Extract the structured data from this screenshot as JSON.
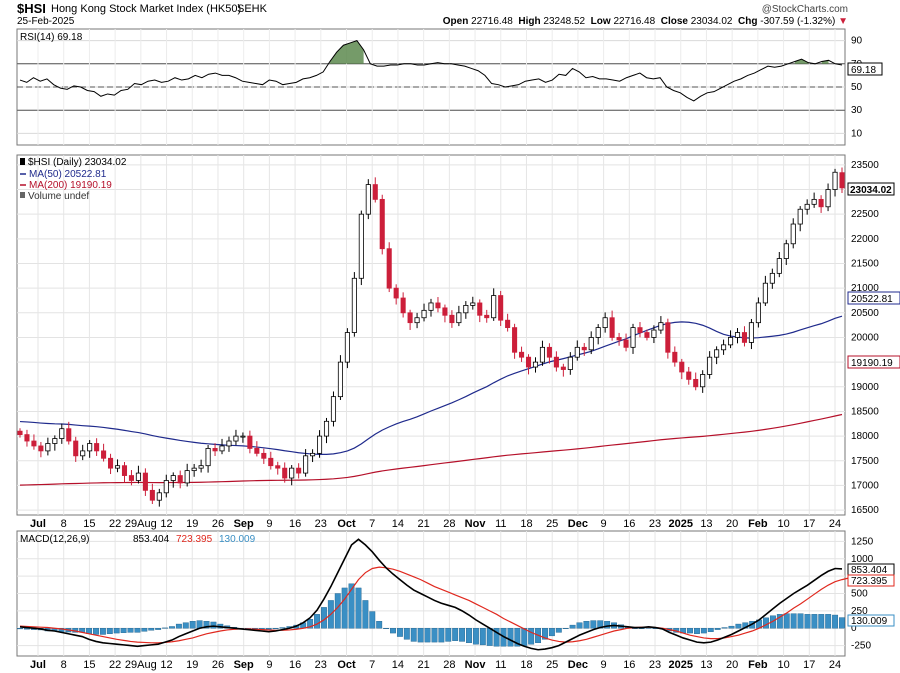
{
  "header": {
    "symbol": "$HSI",
    "name": "Hong Kong Stock Market Index (HK50)",
    "exchange": "SEHK",
    "date": "25-Feb-2025",
    "open_label": "Open",
    "open": "22716.48",
    "high_label": "High",
    "high": "23248.52",
    "low_label": "Low",
    "low": "22716.48",
    "close_label": "Close",
    "close": "23034.02",
    "chg_label": "Chg",
    "chg": "-307.59 (-1.32%)",
    "watermark": "@StockCharts.com"
  },
  "colors": {
    "up": "#000000",
    "down": "#cc1f3a",
    "ma50": "#1f2a8c",
    "ma200": "#b5102a",
    "rsi_fill": "#5d8a4f",
    "hist": "#3a8fc4",
    "signal": "#e0281e",
    "grid": "#d9d9d9"
  },
  "chart_data": [
    {
      "type": "line",
      "title": "RSI(14) 69.18",
      "ylim": [
        0,
        100
      ],
      "y_ticks": [
        "10",
        "30",
        "50",
        "70",
        "90"
      ],
      "last_value": "69.18",
      "series": [
        {
          "name": "RSI(14)",
          "values": [
            56,
            54,
            58,
            55,
            57,
            52,
            49,
            48,
            51,
            50,
            47,
            46,
            42,
            44,
            43,
            47,
            48,
            53,
            52,
            55,
            56,
            54,
            55,
            58,
            56,
            57,
            60,
            58,
            61,
            62,
            60,
            60,
            58,
            55,
            54,
            53,
            52,
            56,
            55,
            52,
            53,
            54,
            57,
            58,
            60,
            63,
            72,
            80,
            86,
            88,
            90,
            82,
            70,
            68,
            68,
            69,
            69,
            70,
            70,
            69,
            69,
            70,
            71,
            70,
            70,
            69,
            68,
            66,
            64,
            60,
            53,
            52,
            50,
            51,
            52,
            55,
            56,
            57,
            54,
            56,
            61,
            60,
            66,
            63,
            58,
            59,
            57,
            57,
            56,
            55,
            58,
            60,
            62,
            58,
            57,
            58,
            50,
            47,
            45,
            41,
            38,
            42,
            45,
            46,
            49,
            52,
            55,
            57,
            60,
            62,
            65,
            68,
            67,
            68,
            70,
            72,
            74,
            71,
            70,
            72,
            73,
            70,
            69
          ]
        }
      ],
      "overbought": 70,
      "oversold": 30
    },
    {
      "type": "candlestick",
      "title": "$HSI (Daily) 23034.02",
      "legend": [
        "$HSI (Daily) 23034.02",
        "MA(50) 20522.81",
        "MA(200) 19190.19",
        "Volume undef"
      ],
      "ylim": [
        16400,
        23700
      ],
      "y_ticks": [
        "16500",
        "17000",
        "17500",
        "18000",
        "18500",
        "19000",
        "19500",
        "20000",
        "20500",
        "21000",
        "21500",
        "22000",
        "22500",
        "23000",
        "23500"
      ],
      "x_ticks": [
        "Jul",
        "8",
        "15",
        "22",
        "29Aug",
        "12",
        "19",
        "26",
        "Sep",
        "9",
        "16",
        "23",
        "Oct",
        "7",
        "14",
        "21",
        "28",
        "Nov",
        "11",
        "18",
        "25",
        "Dec",
        "9",
        "16",
        "23",
        "2025",
        "13",
        "20",
        "Feb",
        "10",
        "17",
        "24"
      ],
      "last_close": "23034.02",
      "ma50_last": "20522.81",
      "ma200_last": "19190.19",
      "closes": [
        18030,
        17900,
        17800,
        17700,
        17850,
        17950,
        18150,
        17900,
        17600,
        17700,
        17850,
        17700,
        17550,
        17350,
        17400,
        17200,
        17100,
        17250,
        16900,
        16700,
        16850,
        17100,
        17200,
        17050,
        17300,
        17350,
        17400,
        17750,
        17700,
        17800,
        17900,
        18000,
        18000,
        17750,
        17650,
        17550,
        17400,
        17350,
        17150,
        17350,
        17250,
        17600,
        17650,
        18000,
        18300,
        18800,
        19500,
        20100,
        21200,
        22500,
        23100,
        22800,
        21800,
        21000,
        20800,
        20500,
        20300,
        20400,
        20550,
        20700,
        20600,
        20450,
        20300,
        20500,
        20650,
        20700,
        20450,
        20400,
        20850,
        20350,
        20200,
        19700,
        19600,
        19400,
        19500,
        19800,
        19600,
        19400,
        19350,
        19600,
        19800,
        19750,
        20000,
        20200,
        20400,
        20000,
        19950,
        19800,
        20200,
        20100,
        20000,
        20150,
        20300,
        19700,
        19500,
        19300,
        19150,
        19000,
        19250,
        19600,
        19750,
        19850,
        20000,
        20100,
        19900,
        20300,
        20700,
        21100,
        21300,
        21600,
        21900,
        22300,
        22600,
        22700,
        22800,
        22650,
        23000,
        23350,
        23034.02
      ],
      "opens": [
        18100,
        18030,
        17900,
        17800,
        17700,
        17850,
        17950,
        18150,
        17900,
        17600,
        17700,
        17850,
        17700,
        17550,
        17350,
        17400,
        17200,
        17100,
        17250,
        16900,
        16700,
        16850,
        17100,
        17200,
        17050,
        17300,
        17350,
        17400,
        17750,
        17700,
        17800,
        17900,
        18000,
        18000,
        17750,
        17650,
        17550,
        17400,
        17350,
        17150,
        17350,
        17250,
        17600,
        17650,
        18000,
        18300,
        18800,
        19500,
        20100,
        21200,
        22500,
        23100,
        22800,
        21800,
        21000,
        20800,
        20500,
        20300,
        20400,
        20550,
        20700,
        20600,
        20450,
        20300,
        20500,
        20650,
        20700,
        20450,
        20400,
        20850,
        20350,
        20200,
        19700,
        19600,
        19400,
        19500,
        19800,
        19600,
        19400,
        19350,
        19600,
        19800,
        19750,
        20000,
        20200,
        20400,
        20000,
        19950,
        19800,
        20200,
        20100,
        20000,
        20150,
        20300,
        19700,
        19500,
        19300,
        19150,
        19000,
        19250,
        19600,
        19750,
        19850,
        20000,
        20100,
        19900,
        20300,
        20700,
        21100,
        21300,
        21600,
        21900,
        22300,
        22600,
        22700,
        22800,
        22650,
        23000,
        23341.61
      ]
    },
    {
      "type": "line",
      "title": "MACD(12,26,9) 853.404, 723.395, 130.009",
      "legend": [
        "MACD(12,26,9)",
        "853.404",
        "723.395",
        "130.009"
      ],
      "ylim": [
        -400,
        1400
      ],
      "y_ticks": [
        "-250",
        "0",
        "250",
        "500",
        "750",
        "1000",
        "1250"
      ],
      "value_labels": [
        "853.404",
        "723.395",
        "130.009"
      ],
      "series": [
        {
          "name": "MACD(12,26,9)",
          "values": [
            20,
            10,
            0,
            -10,
            -30,
            -40,
            -60,
            -80,
            -100,
            -120,
            -160,
            -190,
            -210,
            -220,
            -230,
            -240,
            -250,
            -260,
            -250,
            -240,
            -230,
            -200,
            -170,
            -120,
            -80,
            -40,
            0,
            20,
            30,
            20,
            10,
            0,
            -10,
            -20,
            -30,
            -40,
            -50,
            -40,
            -20,
            0,
            30,
            80,
            150,
            260,
            420,
            600,
            800,
            1000,
            1200,
            1280,
            1200,
            1100,
            980,
            870,
            780,
            700,
            620,
            550,
            500,
            450,
            400,
            360,
            330,
            300,
            250,
            190,
            120,
            60,
            0,
            -60,
            -120,
            -170,
            -220,
            -260,
            -290,
            -310,
            -300,
            -280,
            -250,
            -200,
            -150,
            -100,
            -60,
            -20,
            10,
            30,
            40,
            30,
            20,
            10,
            10,
            20,
            10,
            -10,
            -60,
            -100,
            -140,
            -170,
            -200,
            -210,
            -200,
            -170,
            -130,
            -90,
            -40,
            10,
            60,
            120,
            200,
            280,
            360,
            430,
            500,
            560,
            620,
            690,
            760,
            820,
            860,
            853.404
          ]
        },
        {
          "name": "Signal",
          "values": [
            30,
            25,
            20,
            15,
            10,
            0,
            -10,
            -25,
            -40,
            -60,
            -80,
            -100,
            -120,
            -140,
            -160,
            -175,
            -190,
            -200,
            -205,
            -210,
            -210,
            -205,
            -195,
            -180,
            -160,
            -140,
            -110,
            -80,
            -60,
            -40,
            -25,
            -15,
            -10,
            -10,
            -15,
            -20,
            -25,
            -30,
            -30,
            -25,
            -15,
            0,
            20,
            60,
            120,
            200,
            300,
            420,
            560,
            700,
            800,
            860,
            880,
            870,
            850,
            820,
            780,
            740,
            700,
            650,
            600,
            560,
            520,
            480,
            440,
            400,
            350,
            300,
            250,
            200,
            140,
            90,
            40,
            -10,
            -60,
            -100,
            -140,
            -170,
            -190,
            -200,
            -195,
            -180,
            -160,
            -130,
            -100,
            -70,
            -40,
            -20,
            0,
            10,
            15,
            15,
            10,
            0,
            -20,
            -40,
            -70,
            -100,
            -120,
            -140,
            -150,
            -150,
            -140,
            -120,
            -100,
            -70,
            -40,
            0,
            50,
            100,
            160,
            220,
            290,
            350,
            420,
            490,
            560,
            620,
            670,
            700,
            723.395
          ]
        }
      ],
      "histogram_last": "130.009"
    }
  ]
}
